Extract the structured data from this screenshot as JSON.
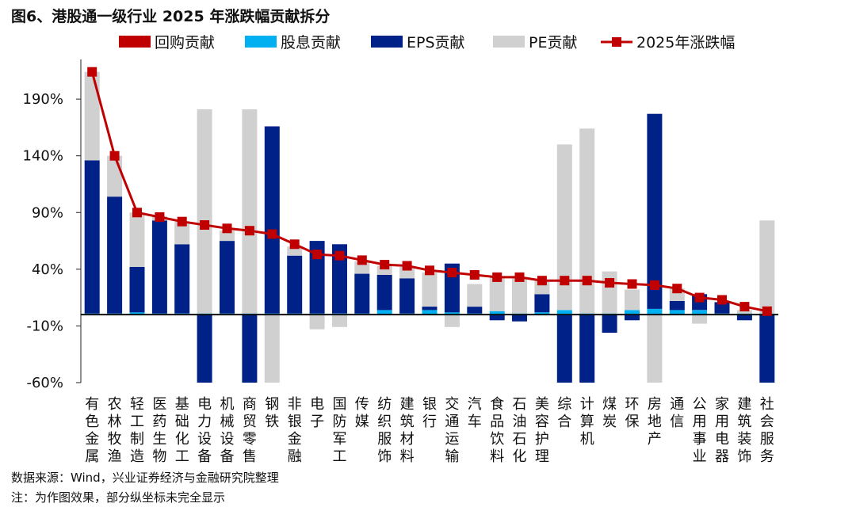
{
  "header": {
    "title": "图6、港股通一级行业 2025 年涨跌幅贡献拆分"
  },
  "footer": {
    "source": "数据来源：Wind，兴业证券经济与金融研究院整理",
    "note": "注：为作图效果，部分纵坐标未完全显示"
  },
  "chart_data": {
    "type": "bar",
    "stacked": true,
    "categories": [
      "有色金属",
      "农林牧渔",
      "轻工制造",
      "医药生物",
      "基础化工",
      "电力设备",
      "机械设备",
      "商贸零售",
      "钢铁",
      "非银金融",
      "电子",
      "国防军工",
      "传媒",
      "纺织服饰",
      "建筑材料",
      "银行",
      "交通运输",
      "汽车",
      "食品饮料",
      "石油石化",
      "美容护理",
      "综合",
      "计算机",
      "煤炭",
      "环保",
      "房地产",
      "通信",
      "公用事业",
      "家用电器",
      "建筑装饰",
      "社会服务"
    ],
    "series": [
      {
        "name": "回购贡献",
        "color": "#C00000",
        "kind": "bar",
        "values": [
          0,
          0,
          0,
          0,
          0,
          0,
          0,
          0,
          0,
          0,
          0,
          0,
          0,
          0,
          0,
          0,
          0,
          0,
          0,
          0,
          0,
          0,
          0,
          0,
          0,
          0,
          0,
          0,
          0,
          0,
          0
        ]
      },
      {
        "name": "股息贡献",
        "color": "#00B0F0",
        "kind": "bar",
        "values": [
          1,
          1,
          2,
          1,
          1,
          1,
          1,
          1,
          1,
          1,
          1,
          1,
          1,
          4,
          1,
          4,
          2,
          1,
          3,
          1,
          2,
          4,
          1,
          1,
          4,
          5,
          4,
          4,
          1,
          1,
          1
        ]
      },
      {
        "name": "EPS贡献",
        "color": "#002288",
        "kind": "bar",
        "values": [
          135,
          103,
          40,
          82,
          61,
          -61,
          64,
          -61,
          165,
          51,
          64,
          61,
          35,
          31,
          31,
          3,
          43,
          6,
          -5,
          -6,
          16,
          -61,
          -61,
          -16,
          -5,
          172,
          8,
          14,
          10,
          -5,
          -61
        ]
      },
      {
        "name": "PE贡献",
        "color": "#D0D0D0",
        "kind": "bar",
        "values": [
          78,
          36,
          48,
          4,
          20,
          180,
          9,
          180,
          -61,
          8,
          -13,
          -11,
          11,
          8,
          10,
          30,
          -11,
          20,
          30,
          32,
          12,
          146,
          163,
          37,
          18,
          -61,
          11,
          -8,
          0,
          3,
          82
        ]
      },
      {
        "name": "2025年涨跌幅",
        "color": "#C00000",
        "kind": "line",
        "values": [
          214,
          140,
          90,
          86,
          82,
          79,
          76,
          74,
          71,
          62,
          53,
          52,
          48,
          44,
          43,
          39,
          37,
          35,
          33,
          33,
          30,
          30,
          30,
          28,
          27,
          26,
          23,
          15,
          13,
          7,
          3
        ]
      }
    ],
    "ylim": [
      -60,
      225
    ],
    "yticks": [
      -60,
      -10,
      40,
      90,
      140,
      190
    ],
    "ytick_labels": [
      "-60%",
      "-10%",
      "40%",
      "90%",
      "140%",
      "190%"
    ],
    "legend_position": "top",
    "grid": false
  }
}
